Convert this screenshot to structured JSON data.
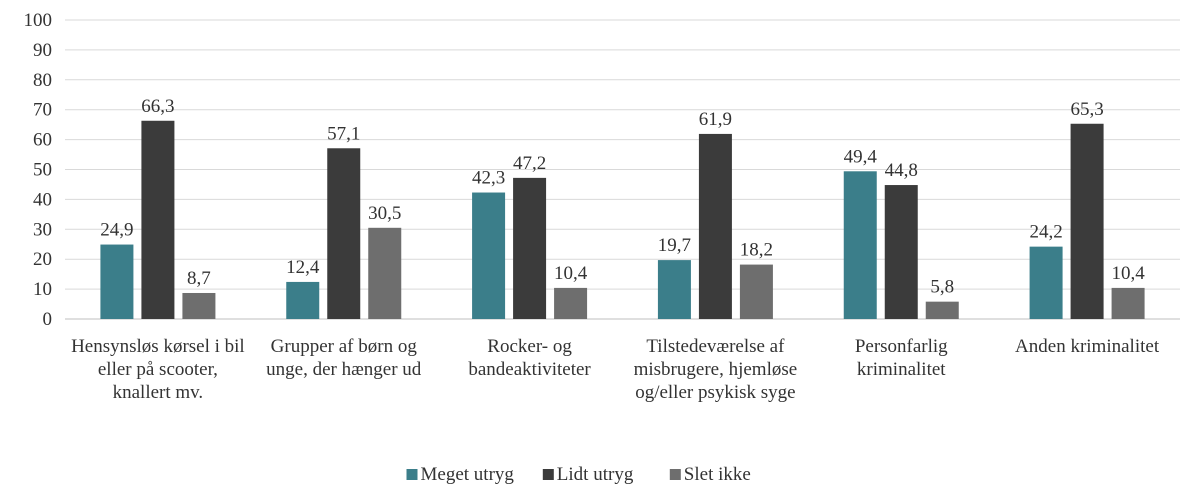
{
  "chart_data": {
    "type": "bar",
    "categories": [
      "Hensynsløs kørsel i bil eller på scooter, knallert mv.",
      "Grupper af børn og unge, der hænger ud",
      "Rocker- og bandeaktiviteter",
      "Tilstedeværelse af misbrugere, hjemløse og/eller psykisk syge",
      "Personfarlig kriminalitet",
      "Anden kriminalitet"
    ],
    "series": [
      {
        "name": "Meget utryg",
        "color": "#3b7e8a",
        "values": [
          24.9,
          12.4,
          42.3,
          19.7,
          49.4,
          24.2
        ],
        "value_labels": [
          "24,9",
          "12,4",
          "42,3",
          "19,7",
          "49,4",
          "24,2"
        ]
      },
      {
        "name": "Lidt utryg",
        "color": "#3b3b3b",
        "values": [
          66.3,
          57.1,
          47.2,
          61.9,
          44.8,
          65.3
        ],
        "value_labels": [
          "66,3",
          "57,1",
          "47,2",
          "61,9",
          "44,8",
          "65,3"
        ]
      },
      {
        "name": "Slet ikke",
        "color": "#6e6e6e",
        "values": [
          8.7,
          30.5,
          10.4,
          18.2,
          5.8,
          10.4
        ],
        "value_labels": [
          "8,7",
          "30,5",
          "10,4",
          "18,2",
          "5,8",
          "10,4"
        ]
      }
    ],
    "ylim": [
      0,
      100
    ],
    "yticks": [
      0,
      10,
      20,
      30,
      40,
      50,
      60,
      70,
      80,
      90,
      100
    ],
    "grid": true,
    "legend": "bottom"
  }
}
